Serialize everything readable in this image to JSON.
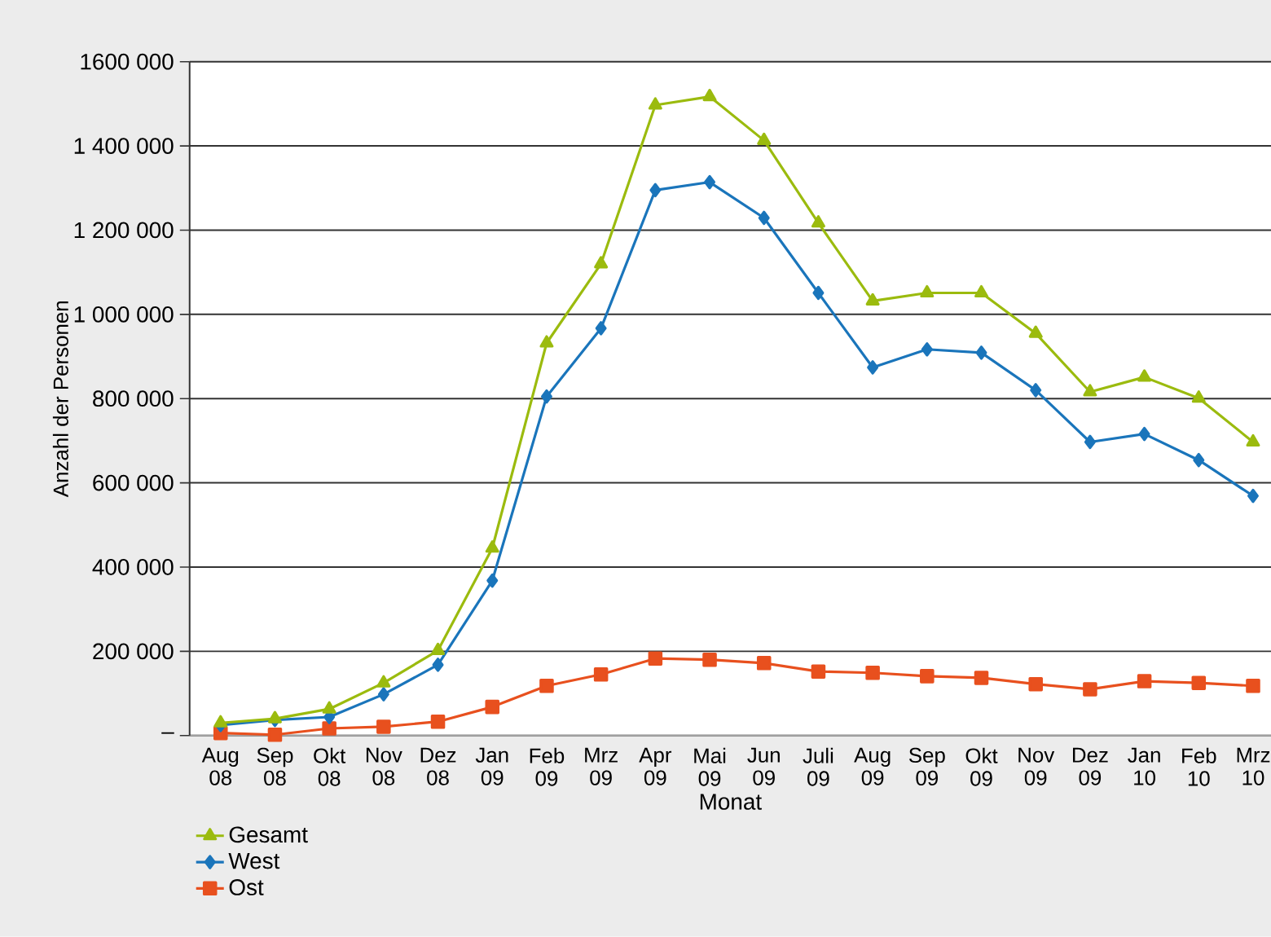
{
  "chart_data": {
    "type": "line",
    "xlabel": "Monat",
    "ylabel": "Anzahl der Personen",
    "categories": [
      "Aug 08",
      "Sep 08",
      "Okt 08",
      "Nov 08",
      "Dez 08",
      "Jan 09",
      "Feb 09",
      "Mrz 09",
      "Apr 09",
      "Mai 09",
      "Jun 09",
      "Juli 09",
      "Aug 09",
      "Sep 09",
      "Okt 09",
      "Nov 09",
      "Dez 09",
      "Jan 10",
      "Feb 10",
      "Mrz 10"
    ],
    "ylim": [
      0,
      1600000
    ],
    "yticks": [
      {
        "value": 0,
        "label": "–"
      },
      {
        "value": 200000,
        "label": "200 000"
      },
      {
        "value": 400000,
        "label": "400 000"
      },
      {
        "value": 600000,
        "label": "600 000"
      },
      {
        "value": 800000,
        "label": "800 000"
      },
      {
        "value": 1000000,
        "label": "1 000 000"
      },
      {
        "value": 1200000,
        "label": "1 200 000"
      },
      {
        "value": 1400000,
        "label": "1 400 000"
      },
      {
        "value": 1600000,
        "label": "1600 000"
      }
    ],
    "grid": "y",
    "legend": "bottom left",
    "line_style": "solid",
    "series": [
      {
        "name": "Gesamt",
        "color": "#9bbb0e",
        "marker": "triangle",
        "values": [
          30000,
          40000,
          63000,
          125000,
          202000,
          445000,
          932000,
          1120000,
          1497000,
          1517000,
          1413000,
          1217000,
          1032000,
          1051000,
          1051000,
          955000,
          816000,
          851000,
          801000,
          697000
        ]
      },
      {
        "name": "West",
        "color": "#1a75bb",
        "marker": "diamond",
        "values": [
          25000,
          37000,
          44000,
          98000,
          168000,
          368000,
          805000,
          967000,
          1295000,
          1314000,
          1229000,
          1051000,
          874000,
          917000,
          909000,
          820000,
          697000,
          716000,
          654000,
          569000
        ]
      },
      {
        "name": "Ost",
        "color": "#e8501e",
        "marker": "square",
        "values": [
          6000,
          2000,
          17000,
          21000,
          33000,
          68000,
          118000,
          145000,
          183000,
          180000,
          172000,
          152000,
          149000,
          141000,
          137000,
          122000,
          110000,
          129000,
          125000,
          118000
        ]
      }
    ]
  }
}
